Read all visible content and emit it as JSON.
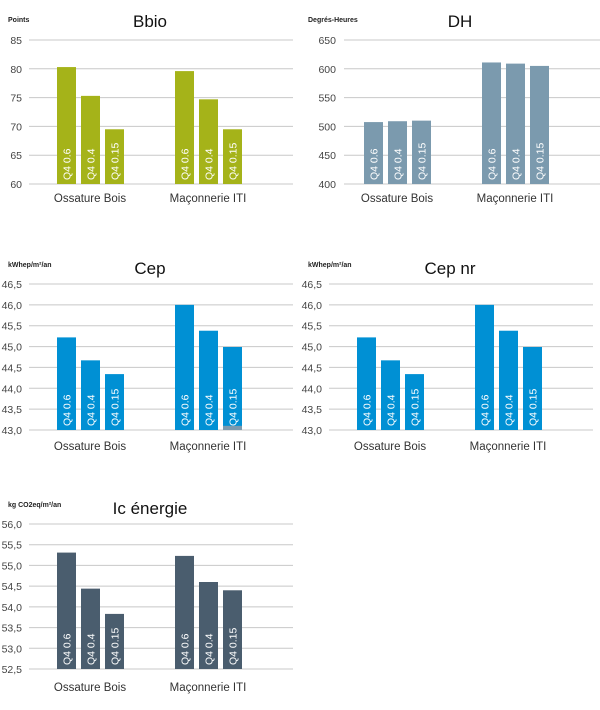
{
  "chart_data": [
    {
      "type": "bar",
      "title": "Bbio",
      "ylabel": "Points",
      "categories": [
        "Ossature Bois",
        "Maçonnerie ITI"
      ],
      "bar_labels": [
        "Q4 0.6",
        "Q4 0.4",
        "Q4 0.15"
      ],
      "values": [
        [
          80.3,
          75.3,
          69.5
        ],
        [
          79.6,
          74.7,
          69.5
        ]
      ],
      "ylim": [
        60,
        85
      ],
      "yticks": [
        "60",
        "65",
        "70",
        "75",
        "80",
        "85"
      ],
      "grid": true,
      "color": "#a5b319"
    },
    {
      "type": "bar",
      "title": "DH",
      "ylabel": "Degrés-Heures",
      "categories": [
        "Ossature Bois",
        "Maçonnerie ITI"
      ],
      "bar_labels": [
        "Q4 0.6",
        "Q4 0.4",
        "Q4 0.15"
      ],
      "values": [
        [
          507.5,
          509,
          510
        ],
        [
          611,
          609,
          605
        ]
      ],
      "ylim": [
        400,
        650
      ],
      "yticks": [
        "400",
        "450",
        "500",
        "550",
        "600",
        "650"
      ],
      "grid": true,
      "color": "#7b9aae"
    },
    {
      "type": "bar",
      "title": "Cep",
      "ylabel": "kWhep/m²/an",
      "categories": [
        "Ossature Bois",
        "Maçonnerie ITI"
      ],
      "bar_labels": [
        "Q4 0.6",
        "Q4 0.4",
        "Q4 0.15"
      ],
      "values": [
        [
          45.22,
          44.67,
          44.34
        ],
        [
          46.0,
          45.38,
          44.99
        ]
      ],
      "secondary": [
        [
          null,
          null,
          null
        ],
        [
          null,
          null,
          43.1
        ]
      ],
      "secondary_color": "#7b9aae",
      "ylim": [
        43.0,
        46.5
      ],
      "yticks": [
        "43,0",
        "43,5",
        "44,0",
        "44,5",
        "45,0",
        "45,5",
        "46,0",
        "46,5"
      ],
      "grid": true,
      "color": "#0090d4"
    },
    {
      "type": "bar",
      "title": "Cep nr",
      "ylabel": "kWhep/m²/an",
      "categories": [
        "Ossature Bois",
        "Maçonnerie ITI"
      ],
      "bar_labels": [
        "Q4 0.6",
        "Q4 0.4",
        "Q4 0.15"
      ],
      "values": [
        [
          45.22,
          44.67,
          44.34
        ],
        [
          46.0,
          45.38,
          44.99
        ]
      ],
      "ylim": [
        43.0,
        46.5
      ],
      "yticks": [
        "43,0",
        "43,5",
        "44,0",
        "44,5",
        "45,0",
        "45,5",
        "46,0",
        "46,5"
      ],
      "grid": true,
      "color": "#0090d4"
    },
    {
      "type": "bar",
      "title": "Ic énergie",
      "ylabel": "kg CO2eq/m²/an",
      "categories": [
        "Ossature Bois",
        "Maçonnerie ITI"
      ],
      "bar_labels": [
        "Q4 0.6",
        "Q4 0.4",
        "Q4 0.15"
      ],
      "values": [
        [
          55.31,
          54.44,
          53.83
        ],
        [
          55.23,
          54.6,
          54.4
        ]
      ],
      "ylim": [
        52.5,
        56.0
      ],
      "yticks": [
        "52,5",
        "53,0",
        "53,5",
        "54,0",
        "54,5",
        "55,0",
        "55,5",
        "56,0"
      ],
      "grid": true,
      "color": "#4a5d6e"
    }
  ]
}
